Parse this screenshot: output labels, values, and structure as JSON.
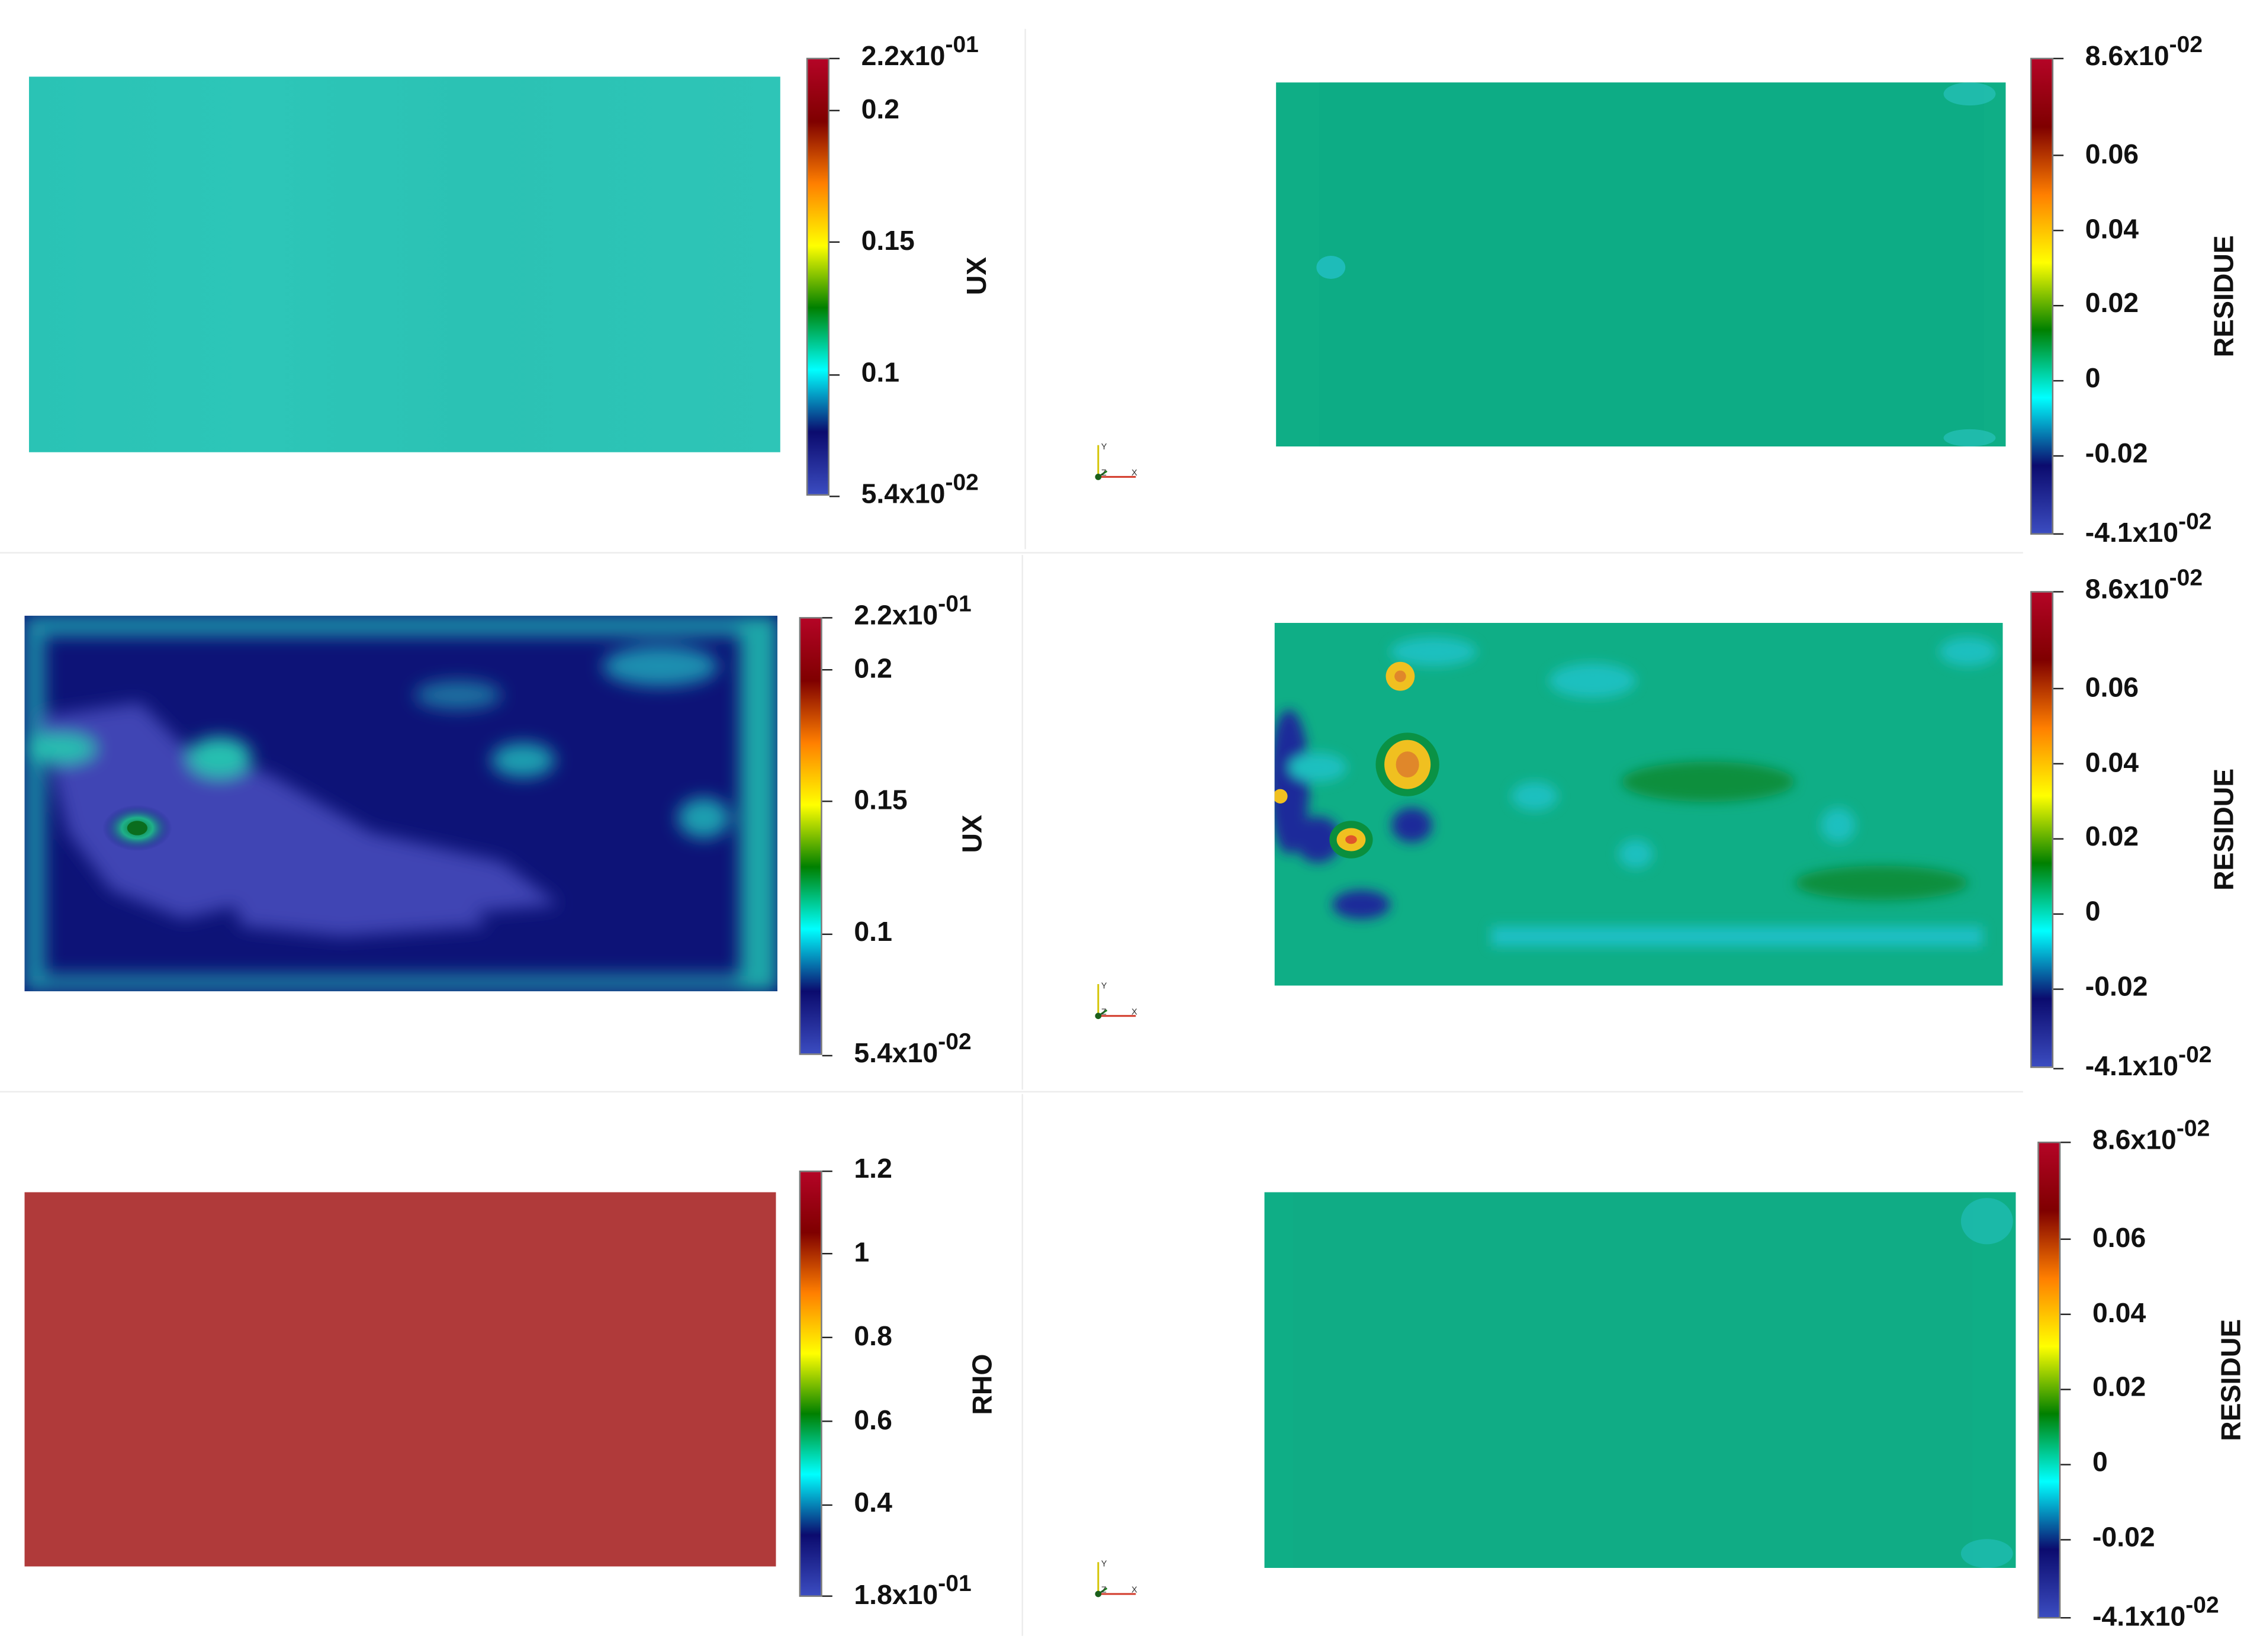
{
  "rows": [
    {
      "left": {
        "variable": "UX",
        "ticks": [
          {
            "mant": "2.2x10",
            "exp": "-01",
            "value": 0.22
          },
          {
            "mant": "0.2",
            "exp": "",
            "value": 0.2
          },
          {
            "mant": "0.15",
            "exp": "",
            "value": 0.15
          },
          {
            "mant": "0.1",
            "exp": "",
            "value": 0.1
          },
          {
            "mant": "5.4x10",
            "exp": "-02",
            "value": 0.054
          }
        ],
        "range": [
          0.054,
          0.22
        ]
      },
      "right": {
        "variable": "RESIDUE",
        "ticks": [
          {
            "mant": "8.6x10",
            "exp": "-02",
            "value": 0.086
          },
          {
            "mant": "0.06",
            "exp": "",
            "value": 0.06
          },
          {
            "mant": "0.04",
            "exp": "",
            "value": 0.04
          },
          {
            "mant": "0.02",
            "exp": "",
            "value": 0.02
          },
          {
            "mant": "0",
            "exp": "",
            "value": 0
          },
          {
            "mant": "-0.02",
            "exp": "",
            "value": -0.02
          },
          {
            "mant": "-4.1x10",
            "exp": "-02",
            "value": -0.041
          }
        ],
        "range": [
          -0.041,
          0.086
        ]
      }
    },
    {
      "left": {
        "variable": "UX",
        "ticks": [
          {
            "mant": "2.2x10",
            "exp": "-01",
            "value": 0.22
          },
          {
            "mant": "0.2",
            "exp": "",
            "value": 0.2
          },
          {
            "mant": "0.15",
            "exp": "",
            "value": 0.15
          },
          {
            "mant": "0.1",
            "exp": "",
            "value": 0.1
          },
          {
            "mant": "5.4x10",
            "exp": "-02",
            "value": 0.054
          }
        ],
        "range": [
          0.054,
          0.22
        ]
      },
      "right": {
        "variable": "RESIDUE",
        "ticks": [
          {
            "mant": "8.6x10",
            "exp": "-02",
            "value": 0.086
          },
          {
            "mant": "0.06",
            "exp": "",
            "value": 0.06
          },
          {
            "mant": "0.04",
            "exp": "",
            "value": 0.04
          },
          {
            "mant": "0.02",
            "exp": "",
            "value": 0.02
          },
          {
            "mant": "0",
            "exp": "",
            "value": 0
          },
          {
            "mant": "-0.02",
            "exp": "",
            "value": -0.02
          },
          {
            "mant": "-4.1x10",
            "exp": "-02",
            "value": -0.041
          }
        ],
        "range": [
          -0.041,
          0.086
        ]
      }
    },
    {
      "left": {
        "variable": "RHO",
        "ticks": [
          {
            "mant": "1.2",
            "exp": "",
            "value": 1.2
          },
          {
            "mant": "1",
            "exp": "",
            "value": 1
          },
          {
            "mant": "0.8",
            "exp": "",
            "value": 0.8
          },
          {
            "mant": "0.6",
            "exp": "",
            "value": 0.6
          },
          {
            "mant": "0.4",
            "exp": "",
            "value": 0.4
          },
          {
            "mant": "1.8x10",
            "exp": "-01",
            "value": 0.18
          }
        ],
        "range": [
          0.18,
          1.2
        ]
      },
      "right": {
        "variable": "RESIDUE",
        "ticks": [
          {
            "mant": "8.6x10",
            "exp": "-02",
            "value": 0.086
          },
          {
            "mant": "0.06",
            "exp": "",
            "value": 0.06
          },
          {
            "mant": "0.04",
            "exp": "",
            "value": 0.04
          },
          {
            "mant": "0.02",
            "exp": "",
            "value": 0.02
          },
          {
            "mant": "0",
            "exp": "",
            "value": 0
          },
          {
            "mant": "-0.02",
            "exp": "",
            "value": -0.02
          },
          {
            "mant": "-4.1x10",
            "exp": "-02",
            "value": -0.041
          }
        ],
        "range": [
          -0.041,
          0.086
        ]
      }
    }
  ],
  "axes_widget": {
    "y_label": "Y",
    "z_label": "Z",
    "x_label": "X"
  },
  "colormap": [
    "#3b4cc0",
    "#0b0b6e",
    "#00ffff",
    "#008000",
    "#ffff00",
    "#ff7f00",
    "#7f0000",
    "#b40426"
  ],
  "field_colors": {
    "ux_background": "#2cc4b6",
    "ux_low": "#3f45b4",
    "ux_mid": "#0d1377",
    "residue_background": "#0fae86",
    "residue_pos_hot": "#e8b516",
    "residue_neg": "#1c2a9a",
    "rho_background": "#b03a3a"
  }
}
